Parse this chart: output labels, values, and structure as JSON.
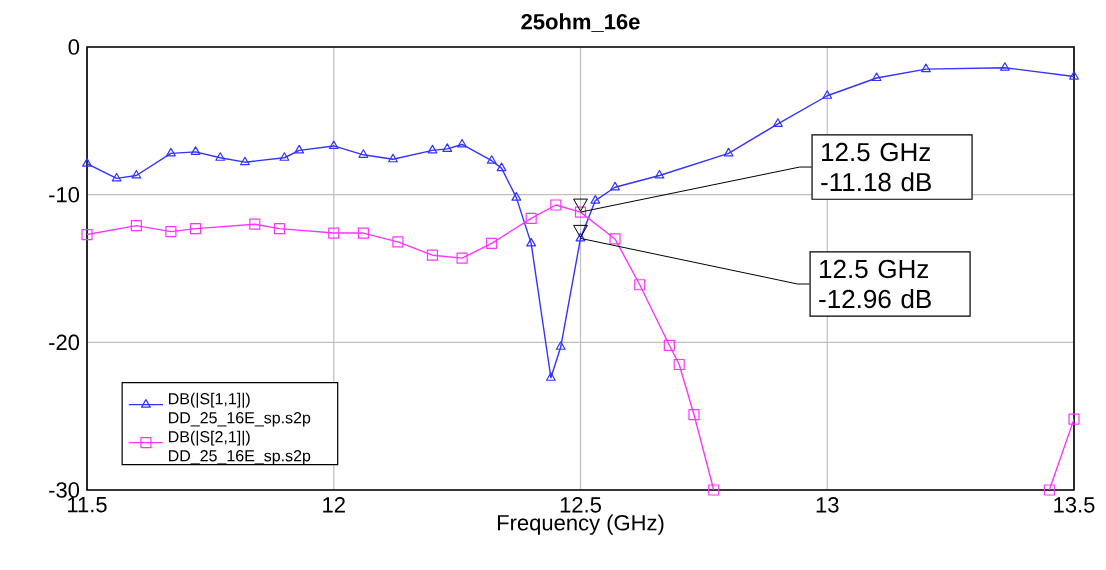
{
  "chart_data": {
    "type": "line",
    "title": "25ohm_16e",
    "xlabel": "Frequency (GHz)",
    "xlim": [
      11.5,
      13.5
    ],
    "xticks": [
      11.5,
      12,
      12.5,
      13,
      13.5
    ],
    "ylim": [
      -30,
      0
    ],
    "yticks": [
      -30,
      -20,
      -10,
      0
    ],
    "grid": true,
    "legend": "bottom left",
    "series": [
      {
        "name": "DB(|S[1,1]|) DD_25_16E_sp.s2p",
        "color": "#3333ff",
        "marker": "triangle",
        "x": [
          11.5,
          11.56,
          11.6,
          11.67,
          11.72,
          11.77,
          11.82,
          11.9,
          11.93,
          12.0,
          12.06,
          12.12,
          12.2,
          12.23,
          12.26,
          12.32,
          12.34,
          12.37,
          12.4,
          12.44,
          12.46,
          12.5,
          12.53,
          12.57,
          12.66,
          12.8,
          12.9,
          13.0,
          13.1,
          13.2,
          13.36,
          13.5
        ],
        "values": [
          -7.9,
          -8.9,
          -8.7,
          -7.2,
          -7.1,
          -7.5,
          -7.8,
          -7.5,
          -7.0,
          -6.7,
          -7.3,
          -7.6,
          -7.0,
          -6.9,
          -6.6,
          -7.7,
          -8.2,
          -10.2,
          -13.3,
          -22.4,
          -20.3,
          -12.96,
          -10.4,
          -9.5,
          -8.7,
          -7.2,
          -5.2,
          -3.3,
          -2.1,
          -1.5,
          -1.4,
          -2.0
        ]
      },
      {
        "name": "DB(|S[2,1]|) DD_25_16E_sp.s2p",
        "color": "#ff33ff",
        "marker": "square",
        "x": [
          11.5,
          11.6,
          11.67,
          11.72,
          11.84,
          11.89,
          12.0,
          12.06,
          12.13,
          12.2,
          12.26,
          12.32,
          12.4,
          12.45,
          12.5,
          12.57,
          12.62,
          12.68,
          12.7,
          12.73,
          12.77,
          13.1,
          13.45,
          13.5
        ],
        "values": [
          -12.7,
          -12.1,
          -12.5,
          -12.3,
          -12.0,
          -12.3,
          -12.6,
          -12.6,
          -13.2,
          -14.1,
          -14.3,
          -13.3,
          -11.6,
          -10.7,
          -11.18,
          -13.0,
          -16.1,
          -20.2,
          -21.5,
          -24.9,
          -30.0,
          null,
          -30.0,
          -25.2
        ]
      }
    ],
    "annotations": [
      {
        "text": "12.5 GHz -11.18 dB",
        "x": 12.5,
        "y": -11.18
      },
      {
        "text": "12.5 GHz -12.96 dB",
        "x": 12.5,
        "y": -12.96
      }
    ]
  }
}
